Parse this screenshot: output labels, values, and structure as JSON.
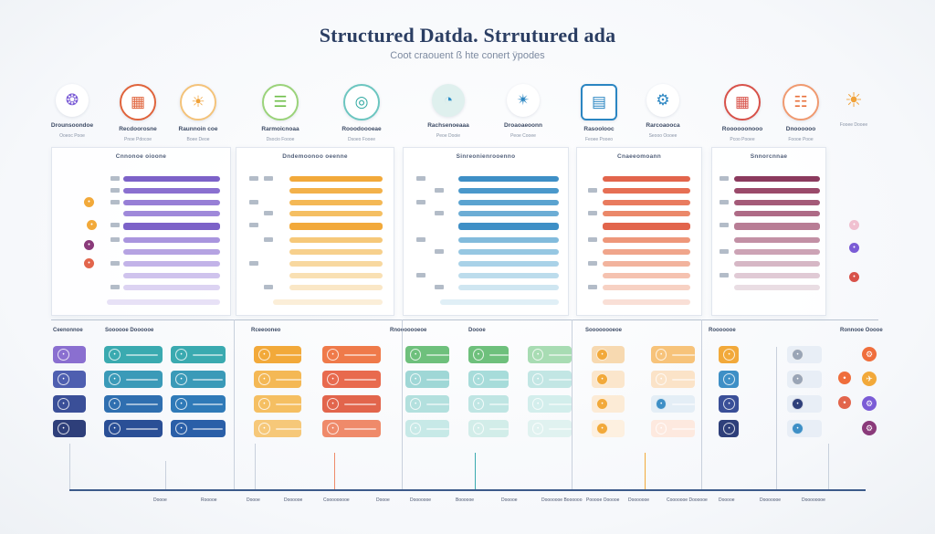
{
  "header": {
    "title": "Structured Datda. Strrutured ada",
    "subtitle": "Coot craouent ß hte conert ÿpodes"
  },
  "top_icons": [
    {
      "icon": "molecule-icon",
      "label": "Drounsoondoe",
      "sub": "Ooeoc Pooe",
      "color": "#7b5cd6"
    },
    {
      "icon": "calendar-icon",
      "label": "Recdoorosne",
      "sub": "Pnoe Pdocoe",
      "color": "#e0643c"
    },
    {
      "icon": "lightbulb-icon",
      "label": "Raunnoin coe",
      "sub": "Boee Deoe",
      "color": "#f0a23a"
    },
    {
      "icon": "document-icon",
      "label": "Rarmoicnoaa",
      "sub": "Dsocio Foooe",
      "color": "#6fbf4a"
    },
    {
      "icon": "globe-icon",
      "label": "Rooodoooeae",
      "sub": "Dsoeo Fooee",
      "color": "#2ea8a0"
    },
    {
      "icon": "pie-chart-icon",
      "label": "Rachsenoeaaa",
      "sub": "Peoe Dooie",
      "color": "#2e8fc8"
    },
    {
      "icon": "network-icon",
      "label": "Droaoaeoonn",
      "sub": "Peoe Cooee",
      "color": "#2b86c2"
    },
    {
      "icon": "chart-frame-icon",
      "label": "Rasoolooc",
      "sub": "Feoee Pooeo",
      "color": "#2b86c2"
    },
    {
      "icon": "gear-icon",
      "label": "Rarcoaooca",
      "sub": "Seooo Oooee",
      "color": "#2b86c2"
    },
    {
      "icon": "grid-icon",
      "label": "Roooooonooo",
      "sub": "Pcoo Pooee",
      "color": "#d8524a"
    },
    {
      "icon": "clipboard-icon",
      "label": "Dnoooooo",
      "sub": "Foooe Pooe",
      "color": "#e8703a"
    },
    {
      "icon": "sun-icon",
      "label": "",
      "sub": "Fooee Dooee",
      "color": "#f0a23a"
    }
  ],
  "panels": [
    {
      "title": "Cnnonoe oioone"
    },
    {
      "title": "Dndemoonoo oeenne"
    },
    {
      "title": "Sinreonienrooenno"
    },
    {
      "title": "Cnaeeomoann"
    },
    {
      "title": "Snnorcnnae"
    }
  ],
  "sections": [
    {
      "label": "Ceenonnoe"
    },
    {
      "label": "Soooooe Doooooe"
    },
    {
      "label": "Rceeooneo"
    },
    {
      "label": "Rnooooooeoe"
    },
    {
      "label": "Doooe"
    },
    {
      "label": "Soooooooeoe"
    },
    {
      "label": "Rooooooe"
    },
    {
      "label": "Ronnooe Ooooe"
    }
  ],
  "bottom_labels": [
    "Doooe",
    "Rooooe",
    "Doooe",
    "Doooooe",
    "Cooooooooe",
    "Doooe",
    "Dooooooe",
    "Boooooe",
    "Dooooe",
    "Dooooooe Boooooo",
    "Pooooe Oooooe",
    "Dooooooe",
    "Cooooooe Doooooe",
    "Dooooe",
    "Dooooooe",
    "Doooooooe"
  ],
  "colors": {
    "purple": "#8a6fd0",
    "orange": "#f2a93a",
    "blue": "#3e8fc6",
    "red": "#e2654c",
    "navy": "#2e3f7a",
    "teal": "#3aaab0",
    "green": "#6ec07c",
    "coral": "#ef6e5c"
  }
}
